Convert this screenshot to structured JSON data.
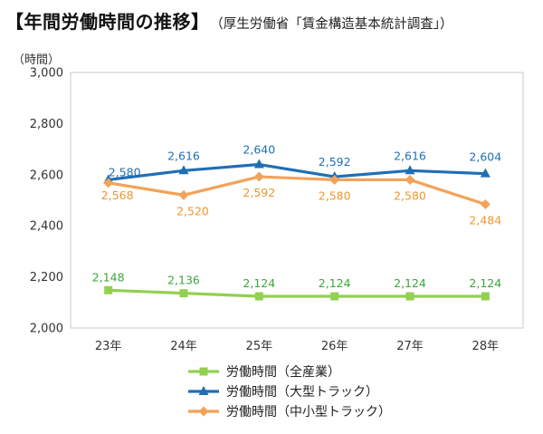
{
  "header": {
    "title": "【年間労働時間の推移】",
    "subtitle": "（厚生労働省「賃金構造基本統計調査」）"
  },
  "chart_data": {
    "type": "line",
    "unit_label": "（時間）",
    "categories": [
      "23年",
      "24年",
      "25年",
      "26年",
      "27年",
      "28年"
    ],
    "ylim": [
      2000,
      3000
    ],
    "yticks": [
      2000,
      2200,
      2400,
      2600,
      2800,
      3000
    ],
    "ytick_labels": [
      "2,000",
      "2,200",
      "2,400",
      "2,600",
      "2,800",
      "3,000"
    ],
    "grid": false,
    "legend_position": "bottom",
    "series": [
      {
        "name": "労働時間（全産業）",
        "color": "#92d050",
        "marker": "square",
        "values": [
          2148,
          2136,
          2124,
          2124,
          2124,
          2124
        ],
        "labels": [
          "2,148",
          "2,136",
          "2,124",
          "2,124",
          "2,124",
          "2,124"
        ],
        "label_color": "#3aa53a"
      },
      {
        "name": "労働時間（大型トラック）",
        "color": "#1f6fb5",
        "marker": "triangle",
        "values": [
          2580,
          2616,
          2640,
          2592,
          2616,
          2604
        ],
        "labels": [
          "2,580",
          "2,616",
          "2,640",
          "2,592",
          "2,616",
          "2,604"
        ],
        "label_color": "#1f6fb5"
      },
      {
        "name": "労働時間（中小型トラック）",
        "color": "#f4a259",
        "marker": "diamond",
        "values": [
          2568,
          2520,
          2592,
          2580,
          2580,
          2484
        ],
        "labels": [
          "2,568",
          "2,520",
          "2,592",
          "2,580",
          "2,580",
          "2,484"
        ],
        "label_color": "#f0962e"
      }
    ]
  }
}
